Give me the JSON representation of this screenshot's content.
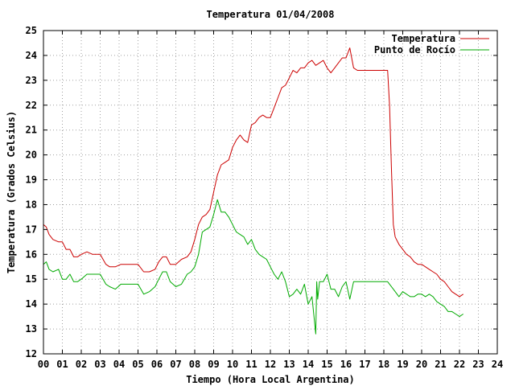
{
  "chart_data": {
    "type": "line",
    "title": "Temperatura 01/04/2008",
    "xlabel": "Tiempo (Hora Local Argentina)",
    "ylabel": "Temperatura (Grados Celsius)",
    "xlim": [
      0,
      24
    ],
    "ylim": [
      12,
      25
    ],
    "x_ticks": [
      0,
      1,
      2,
      3,
      4,
      5,
      6,
      7,
      8,
      9,
      10,
      11,
      12,
      13,
      14,
      15,
      16,
      17,
      18,
      19,
      20,
      21,
      22,
      23,
      24
    ],
    "x_tick_labels": [
      "00",
      "01",
      "02",
      "03",
      "04",
      "05",
      "06",
      "07",
      "08",
      "09",
      "10",
      "11",
      "12",
      "13",
      "14",
      "15",
      "16",
      "17",
      "18",
      "19",
      "20",
      "21",
      "22",
      "23",
      "24"
    ],
    "y_ticks": [
      12,
      13,
      14,
      15,
      16,
      17,
      18,
      19,
      20,
      21,
      22,
      23,
      24,
      25
    ],
    "y_tick_labels": [
      "12",
      "13",
      "14",
      "15",
      "16",
      "17",
      "18",
      "19",
      "20",
      "21",
      "22",
      "23",
      "24",
      "25"
    ],
    "grid": true,
    "legend_position": "top-right",
    "series": [
      {
        "name": "Temperatura",
        "color": "#cc0000",
        "x": [
          0.0,
          0.15,
          0.3,
          0.5,
          0.8,
          1.0,
          1.2,
          1.4,
          1.6,
          1.8,
          2.0,
          2.3,
          2.6,
          3.0,
          3.3,
          3.5,
          3.8,
          4.1,
          4.4,
          4.7,
          5.0,
          5.3,
          5.6,
          5.9,
          6.1,
          6.3,
          6.5,
          6.7,
          7.0,
          7.3,
          7.6,
          7.8,
          8.0,
          8.2,
          8.4,
          8.6,
          8.8,
          9.0,
          9.2,
          9.4,
          9.6,
          9.8,
          10.0,
          10.2,
          10.4,
          10.6,
          10.8,
          11.0,
          11.2,
          11.4,
          11.6,
          11.8,
          12.0,
          12.2,
          12.4,
          12.6,
          12.8,
          13.0,
          13.2,
          13.4,
          13.6,
          13.8,
          14.0,
          14.2,
          14.4,
          14.6,
          14.8,
          15.0,
          15.2,
          15.4,
          15.6,
          15.8,
          16.0,
          16.2,
          16.4,
          16.6,
          16.8,
          17.0,
          17.3,
          17.6,
          17.9,
          18.2,
          18.3,
          18.4,
          18.5,
          18.6,
          18.8,
          19.0,
          19.2,
          19.4,
          19.6,
          19.8,
          20.0,
          20.2,
          20.4,
          20.6,
          20.8,
          21.0,
          21.2,
          21.4,
          21.6,
          21.8,
          22.0,
          22.2
        ],
        "values": [
          17.2,
          17.1,
          16.8,
          16.6,
          16.5,
          16.5,
          16.2,
          16.2,
          15.9,
          15.9,
          16.0,
          16.1,
          16.0,
          16.0,
          15.6,
          15.5,
          15.5,
          15.6,
          15.6,
          15.6,
          15.6,
          15.3,
          15.3,
          15.4,
          15.7,
          15.9,
          15.9,
          15.6,
          15.6,
          15.8,
          15.9,
          16.1,
          16.6,
          17.2,
          17.5,
          17.6,
          17.8,
          18.5,
          19.2,
          19.6,
          19.7,
          19.8,
          20.3,
          20.6,
          20.8,
          20.6,
          20.5,
          21.2,
          21.3,
          21.5,
          21.6,
          21.5,
          21.5,
          21.9,
          22.3,
          22.7,
          22.8,
          23.1,
          23.4,
          23.3,
          23.5,
          23.5,
          23.7,
          23.8,
          23.6,
          23.7,
          23.8,
          23.5,
          23.3,
          23.5,
          23.7,
          23.9,
          23.9,
          24.3,
          23.5,
          23.4,
          23.4,
          23.4,
          23.4,
          23.4,
          23.4,
          23.4,
          22.0,
          19.5,
          17.2,
          16.7,
          16.4,
          16.2,
          16.0,
          15.9,
          15.7,
          15.6,
          15.6,
          15.5,
          15.4,
          15.3,
          15.2,
          15.0,
          14.9,
          14.7,
          14.5,
          14.4,
          14.3,
          14.4
        ]
      },
      {
        "name": "Punto de Rocío",
        "color": "#00aa00",
        "x": [
          0.0,
          0.15,
          0.3,
          0.5,
          0.8,
          1.0,
          1.2,
          1.4,
          1.6,
          1.8,
          2.0,
          2.3,
          2.6,
          3.0,
          3.3,
          3.5,
          3.8,
          4.1,
          4.4,
          4.7,
          5.0,
          5.3,
          5.6,
          5.9,
          6.1,
          6.3,
          6.5,
          6.7,
          7.0,
          7.3,
          7.6,
          7.8,
          8.0,
          8.2,
          8.4,
          8.6,
          8.8,
          9.0,
          9.2,
          9.4,
          9.6,
          9.8,
          10.0,
          10.2,
          10.4,
          10.6,
          10.8,
          11.0,
          11.2,
          11.4,
          11.6,
          11.8,
          12.0,
          12.2,
          12.4,
          12.6,
          12.8,
          13.0,
          13.2,
          13.4,
          13.6,
          13.8,
          14.0,
          14.2,
          14.4,
          14.45,
          14.5,
          14.6,
          14.8,
          15.0,
          15.2,
          15.4,
          15.6,
          15.8,
          16.0,
          16.2,
          16.4,
          16.6,
          16.8,
          17.0,
          17.3,
          17.6,
          17.9,
          18.2,
          18.5,
          18.8,
          19.0,
          19.2,
          19.4,
          19.6,
          19.8,
          20.0,
          20.2,
          20.4,
          20.6,
          20.8,
          21.0,
          21.2,
          21.4,
          21.6,
          21.8,
          22.0,
          22.2
        ],
        "values": [
          15.6,
          15.7,
          15.4,
          15.3,
          15.4,
          15.0,
          15.0,
          15.2,
          14.9,
          14.9,
          15.0,
          15.2,
          15.2,
          15.2,
          14.8,
          14.7,
          14.6,
          14.8,
          14.8,
          14.8,
          14.8,
          14.4,
          14.5,
          14.7,
          15.0,
          15.3,
          15.3,
          14.9,
          14.7,
          14.8,
          15.2,
          15.3,
          15.5,
          16.0,
          16.9,
          17.0,
          17.1,
          17.6,
          18.2,
          17.7,
          17.7,
          17.5,
          17.2,
          16.9,
          16.8,
          16.7,
          16.4,
          16.6,
          16.2,
          16.0,
          15.9,
          15.8,
          15.5,
          15.2,
          15.0,
          15.3,
          14.9,
          14.3,
          14.4,
          14.6,
          14.4,
          14.8,
          14.0,
          14.3,
          12.8,
          14.9,
          14.2,
          14.9,
          14.9,
          15.2,
          14.6,
          14.6,
          14.3,
          14.7,
          14.9,
          14.2,
          14.9,
          14.9,
          14.9,
          14.9,
          14.9,
          14.9,
          14.9,
          14.9,
          14.6,
          14.3,
          14.5,
          14.4,
          14.3,
          14.3,
          14.4,
          14.4,
          14.3,
          14.4,
          14.3,
          14.1,
          14.0,
          13.9,
          13.7,
          13.7,
          13.6,
          13.5,
          13.6
        ]
      }
    ]
  }
}
